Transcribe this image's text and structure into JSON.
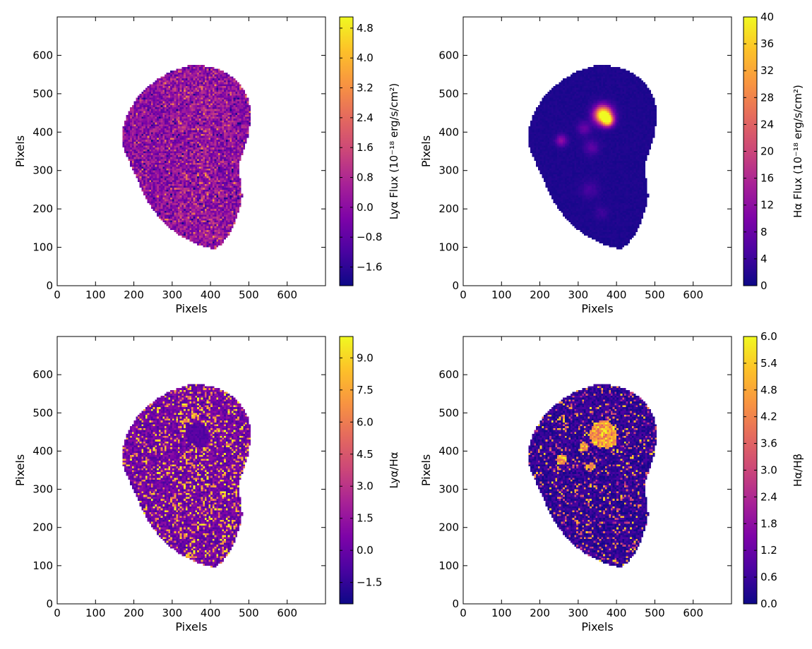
{
  "colors": {
    "colormap": "plasma",
    "background": "#ffffff",
    "axes": "#000000"
  },
  "chart_data": [
    {
      "type": "heatmap",
      "id": "lya-flux",
      "xlabel": "Pixels",
      "ylabel": "Pixels",
      "xlim": [
        0,
        700
      ],
      "ylim": [
        0,
        700
      ],
      "xticks": [
        "0",
        "100",
        "200",
        "300",
        "400",
        "500",
        "600"
      ],
      "yticks": [
        "0",
        "100",
        "200",
        "300",
        "400",
        "500",
        "600"
      ],
      "colorbar": {
        "label": "Lyα Flux (10⁻¹⁸ erg/s/cm²)",
        "range": [
          -2.1,
          5.1
        ],
        "ticks": [
          -1.6,
          -0.8,
          0.0,
          0.8,
          1.6,
          2.4,
          3.2,
          4.0,
          4.8
        ],
        "tick_labels": [
          "−1.6",
          "−0.8",
          "0.0",
          "0.8",
          "1.6",
          "2.4",
          "3.2",
          "4.0",
          "4.8"
        ]
      },
      "region_center": [
        335,
        345
      ],
      "pattern": "noisy mid-level emission with brighter speckle along x≈330–420"
    },
    {
      "type": "heatmap",
      "id": "ha-flux",
      "xlabel": "Pixels",
      "ylabel": "Pixels",
      "xlim": [
        0,
        700
      ],
      "ylim": [
        0,
        700
      ],
      "xticks": [
        "0",
        "100",
        "200",
        "300",
        "400",
        "500",
        "600"
      ],
      "yticks": [
        "0",
        "100",
        "200",
        "300",
        "400",
        "500",
        "600"
      ],
      "colorbar": {
        "label": "Hα Flux (10⁻¹⁸ erg/s/cm²)",
        "range": [
          0,
          40
        ],
        "ticks": [
          0,
          4,
          8,
          12,
          16,
          20,
          24,
          28,
          32,
          36,
          40
        ],
        "tick_labels": [
          "0",
          "4",
          "8",
          "12",
          "16",
          "20",
          "24",
          "28",
          "32",
          "36",
          "40"
        ]
      },
      "pattern": "mostly faint background with a compact bright knot near (370, 440)"
    },
    {
      "type": "heatmap",
      "id": "lya-ha-ratio",
      "xlabel": "Pixels",
      "ylabel": "Pixels",
      "xlim": [
        0,
        700
      ],
      "ylim": [
        0,
        700
      ],
      "xticks": [
        "0",
        "100",
        "200",
        "300",
        "400",
        "500",
        "600"
      ],
      "yticks": [
        "0",
        "100",
        "200",
        "300",
        "400",
        "500",
        "600"
      ],
      "colorbar": {
        "label": "Lyα/Hα",
        "range": [
          -2.5,
          10.0
        ],
        "ticks": [
          -1.5,
          0.0,
          1.5,
          3.0,
          4.5,
          6.0,
          7.5,
          9.0
        ],
        "tick_labels": [
          "−1.5",
          "0.0",
          "1.5",
          "3.0",
          "4.5",
          "6.0",
          "7.5",
          "9.0"
        ]
      },
      "pattern": "salt-and-pepper noise, low values near the Hα-bright knots"
    },
    {
      "type": "heatmap",
      "id": "ha-hb-ratio",
      "xlabel": "Pixels",
      "ylabel": "Pixels",
      "xlim": [
        0,
        700
      ],
      "ylim": [
        0,
        700
      ],
      "xticks": [
        "0",
        "100",
        "200",
        "300",
        "400",
        "500",
        "600"
      ],
      "yticks": [
        "0",
        "100",
        "200",
        "300",
        "400",
        "500",
        "600"
      ],
      "colorbar": {
        "label": "Hα/Hβ",
        "range": [
          0.0,
          6.0
        ],
        "ticks": [
          0.0,
          0.6,
          1.2,
          1.8,
          2.4,
          3.0,
          3.6,
          4.2,
          4.8,
          5.4,
          6.0
        ],
        "tick_labels": [
          "0.0",
          "0.6",
          "1.2",
          "1.8",
          "2.4",
          "3.0",
          "3.6",
          "4.2",
          "4.8",
          "5.4",
          "6.0"
        ]
      },
      "pattern": "noisy low background with coherent bright regions at the Hα knots"
    }
  ]
}
